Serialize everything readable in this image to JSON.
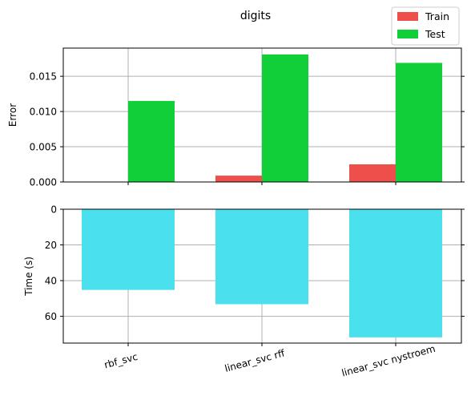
{
  "chart_data": [
    {
      "type": "bar",
      "title": "digits",
      "xlabel": "",
      "ylabel": "Error",
      "categories": [
        "rbf_svc",
        "linear_svc rff",
        "linear_svc nystroem"
      ],
      "series": [
        {
          "name": "Train",
          "values": [
            0.0,
            0.0009,
            0.0025
          ],
          "color": "#ef4f4a"
        },
        {
          "name": "Test",
          "values": [
            0.0115,
            0.0181,
            0.0169
          ],
          "color": "#10cf38"
        }
      ],
      "ylim": [
        0,
        0.019
      ],
      "yticks": [
        "0.000",
        "0.005",
        "0.010",
        "0.015"
      ],
      "yticks_values": [
        0,
        0.005,
        0.01,
        0.015
      ],
      "grid": true,
      "legend": "top-right"
    },
    {
      "type": "bar",
      "xlabel": "",
      "ylabel": "Time (s)",
      "categories": [
        "rbf_svc",
        "linear_svc rff",
        "linear_svc nystroem"
      ],
      "series": [
        {
          "values": [
            45.2,
            53.2,
            71.8
          ],
          "color": "#4ae0ee"
        }
      ],
      "ylim": [
        0,
        75
      ],
      "y_inverted": true,
      "yticks": [
        "0",
        "20",
        "40",
        "60"
      ],
      "yticks_values": [
        0,
        20,
        40,
        60
      ],
      "grid": true
    }
  ]
}
